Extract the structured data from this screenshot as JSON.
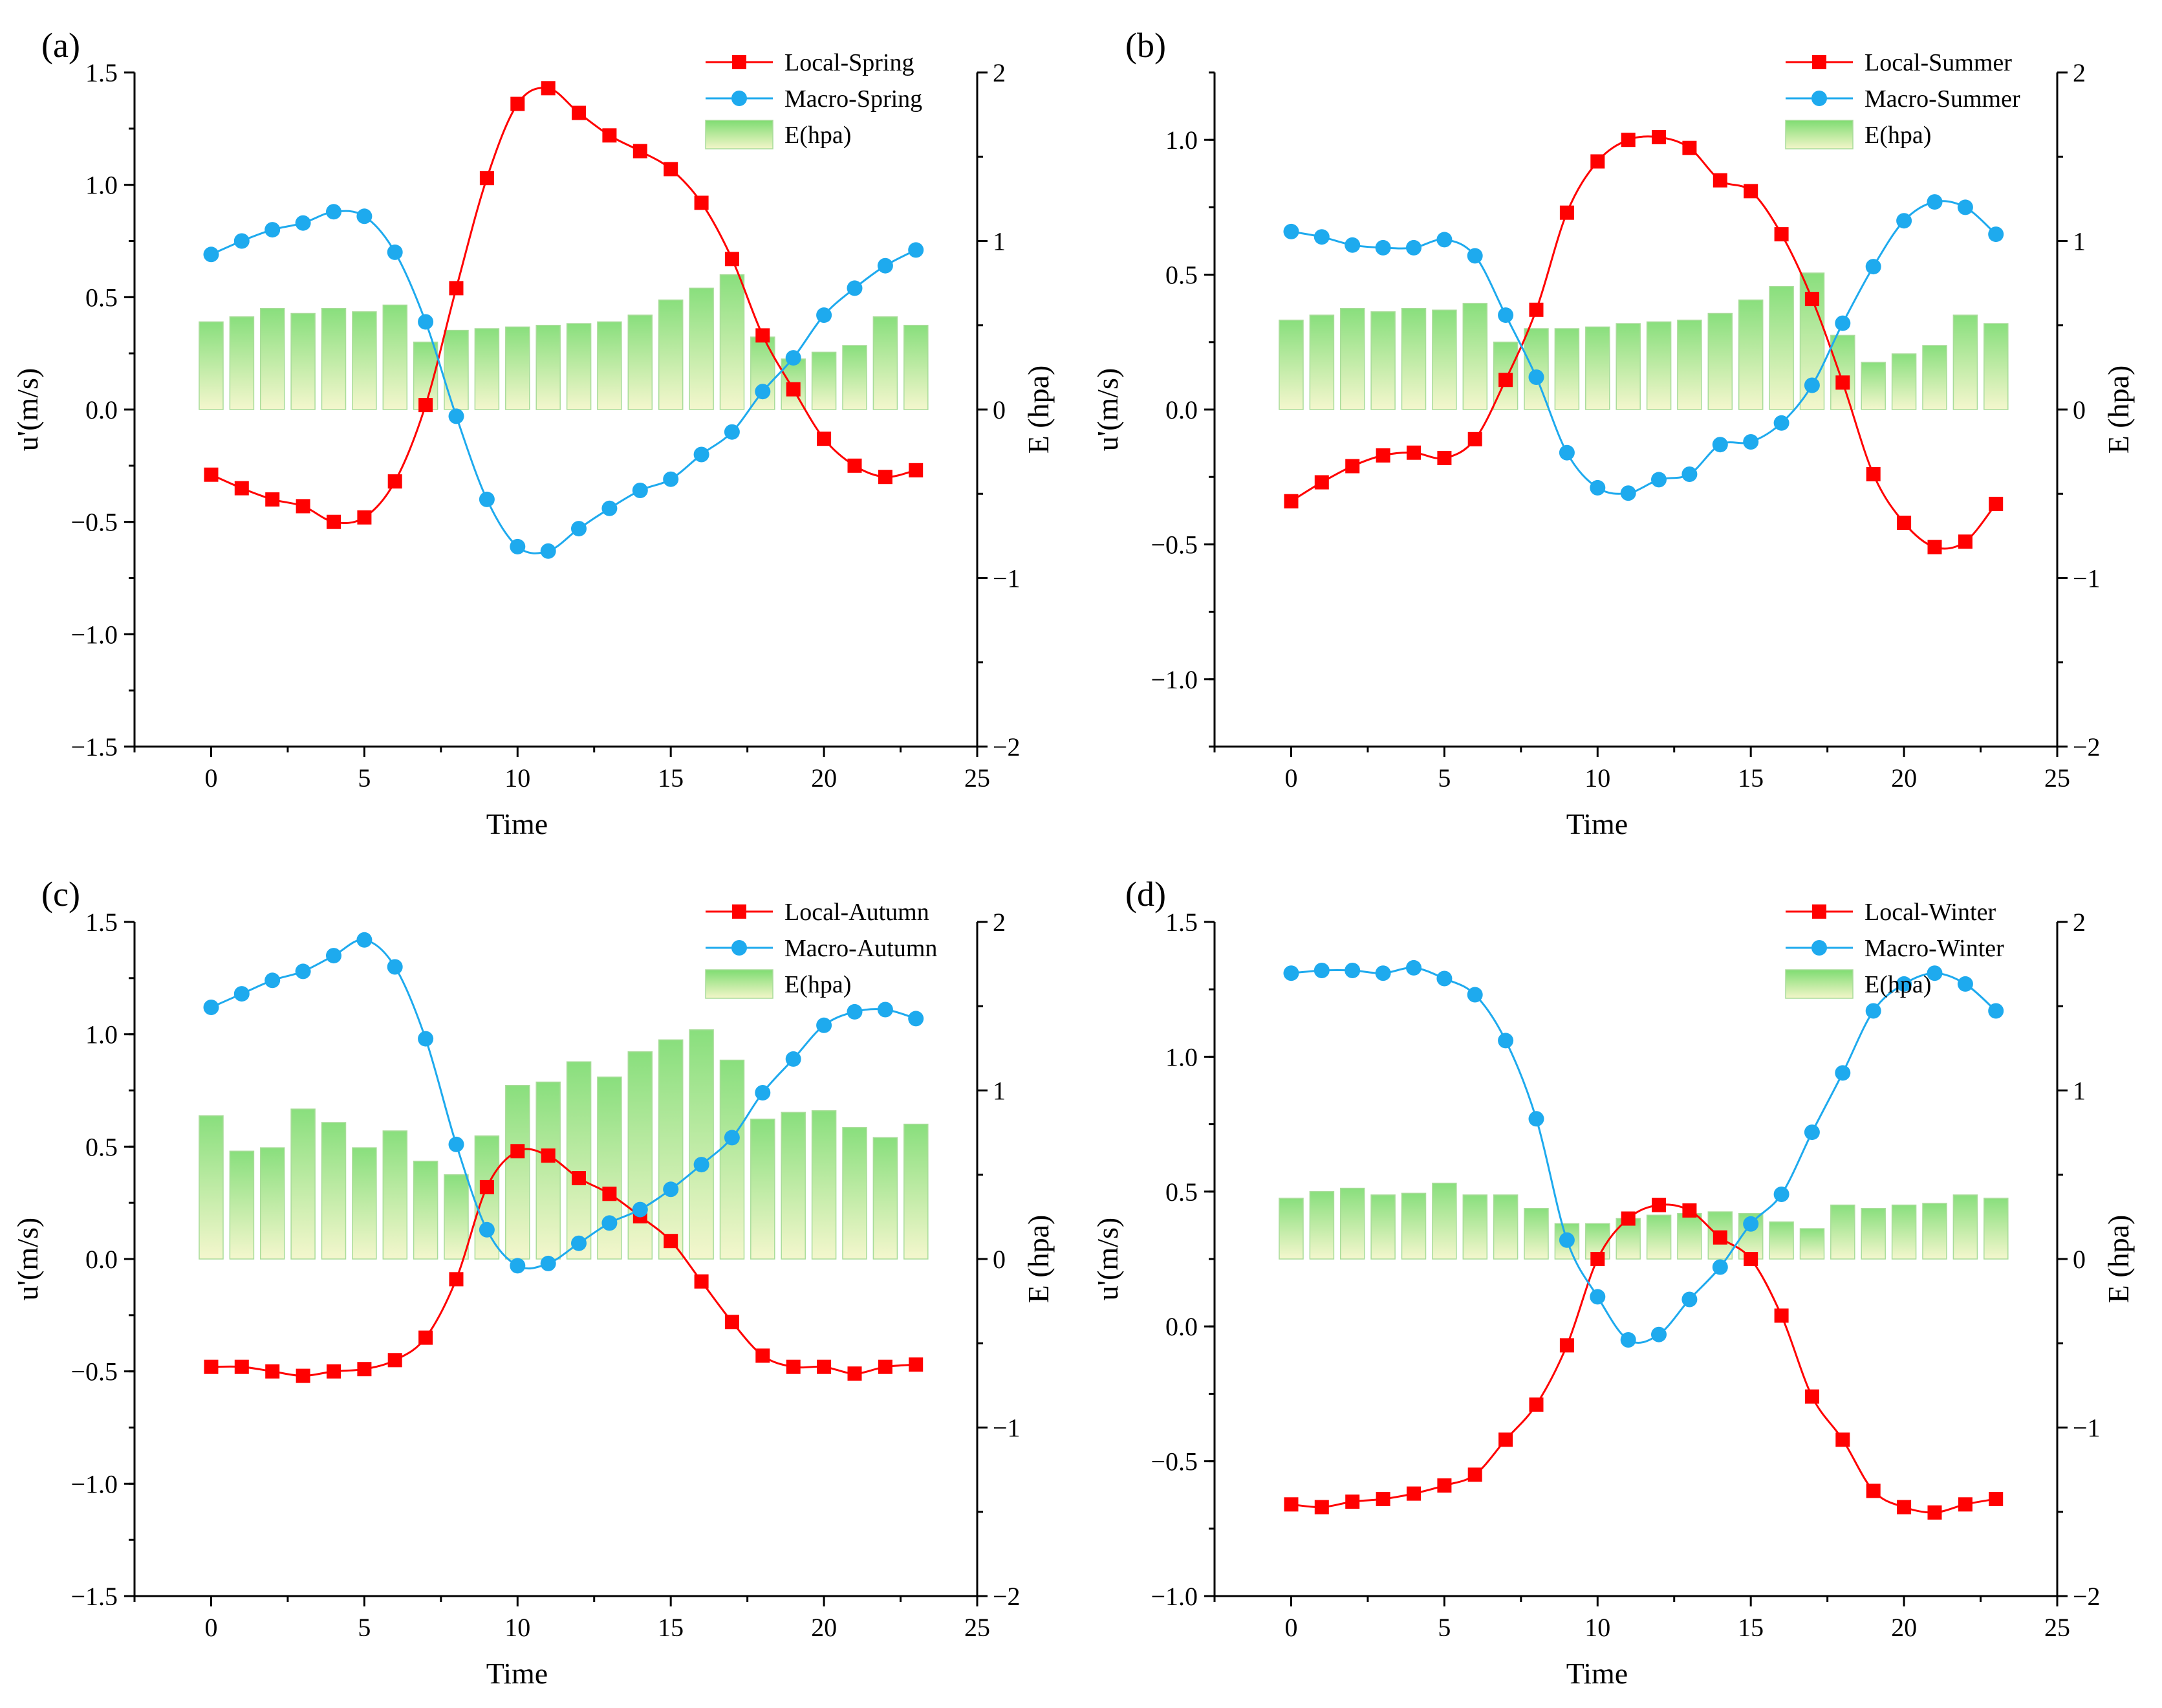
{
  "colors": {
    "local": "#ff0000",
    "macro": "#1eaaee",
    "bar_top": "#7fdc72",
    "bar_bottom": "#f3f6c9",
    "bar_edge": "#a9dc9a"
  },
  "chart_data": [
    {
      "type": "bar+line",
      "label": "(a)",
      "xlabel": "Time",
      "ylabel_left": "u'(m/s)",
      "ylabel_right": "E (hpa)",
      "xlim": [
        -2.5,
        25
      ],
      "xticks": [
        0,
        5,
        10,
        15,
        20,
        25
      ],
      "ylim_left": [
        -1.5,
        1.5
      ],
      "yticks_left": [
        "1.5",
        "1.0",
        "0.5",
        "0.0",
        "−0.5",
        "−1.0",
        "−1.5"
      ],
      "ytick_values_left": [
        1.5,
        1.0,
        0.5,
        0.0,
        -0.5,
        -1.0,
        -1.5
      ],
      "ylim_right": [
        -2,
        2
      ],
      "yticks_right": [
        "2",
        "1",
        "0",
        "−1",
        "−2"
      ],
      "ytick_values_right": [
        2,
        1,
        0,
        -1,
        -2
      ],
      "x": [
        0,
        1,
        2,
        3,
        4,
        5,
        6,
        7,
        8,
        9,
        10,
        11,
        12,
        13,
        14,
        15,
        16,
        17,
        18,
        19,
        20,
        21,
        22,
        23
      ],
      "series": [
        {
          "name": "Local-Spring",
          "kind": "line-square",
          "values": [
            -0.29,
            -0.35,
            -0.4,
            -0.43,
            -0.5,
            -0.48,
            -0.32,
            0.02,
            0.54,
            1.03,
            1.36,
            1.43,
            1.32,
            1.22,
            1.15,
            1.07,
            0.92,
            0.67,
            0.33,
            0.09,
            -0.13,
            -0.25,
            -0.3,
            -0.27
          ]
        },
        {
          "name": "Macro-Spring",
          "kind": "line-circle",
          "values": [
            0.69,
            0.75,
            0.8,
            0.83,
            0.88,
            0.86,
            0.7,
            0.39,
            -0.03,
            -0.4,
            -0.61,
            -0.63,
            -0.53,
            -0.44,
            -0.36,
            -0.31,
            -0.2,
            -0.1,
            0.08,
            0.23,
            0.42,
            0.54,
            0.64,
            0.71
          ]
        },
        {
          "name": "E(hpa)",
          "kind": "bar",
          "values": [
            0.52,
            0.55,
            0.6,
            0.57,
            0.6,
            0.58,
            0.62,
            0.4,
            0.47,
            0.48,
            0.49,
            0.5,
            0.51,
            0.52,
            0.56,
            0.65,
            0.72,
            0.8,
            0.43,
            0.3,
            0.34,
            0.38,
            0.55,
            0.5
          ]
        }
      ]
    },
    {
      "type": "bar+line",
      "label": "(b)",
      "xlabel": "Time",
      "ylabel_left": "u'(m/s)",
      "ylabel_right": "E (hpa)",
      "xlim": [
        -2.5,
        25
      ],
      "xticks": [
        0,
        5,
        10,
        15,
        20,
        25
      ],
      "ylim_left": [
        -1.25,
        1.25
      ],
      "yticks_left": [
        "1.0",
        "0.5",
        "0.0",
        "−0.5",
        "−1.0"
      ],
      "ytick_values_left": [
        1.0,
        0.5,
        0.0,
        -0.5,
        -1.0
      ],
      "ylim_right": [
        -2,
        2
      ],
      "yticks_right": [
        "2",
        "1",
        "0",
        "−1",
        "−2"
      ],
      "ytick_values_right": [
        2,
        1,
        0,
        -1,
        -2
      ],
      "x": [
        0,
        1,
        2,
        3,
        4,
        5,
        6,
        7,
        8,
        9,
        10,
        11,
        12,
        13,
        14,
        15,
        16,
        17,
        18,
        19,
        20,
        21,
        22,
        23
      ],
      "series": [
        {
          "name": "Local-Summer",
          "kind": "line-square",
          "values": [
            -0.34,
            -0.27,
            -0.21,
            -0.17,
            -0.16,
            -0.18,
            -0.11,
            0.11,
            0.37,
            0.73,
            0.92,
            1.0,
            1.01,
            0.97,
            0.85,
            0.81,
            0.65,
            0.41,
            0.1,
            -0.24,
            -0.42,
            -0.51,
            -0.49,
            -0.35
          ]
        },
        {
          "name": "Macro-Summer",
          "kind": "line-circle",
          "values": [
            0.66,
            0.64,
            0.61,
            0.6,
            0.6,
            0.63,
            0.57,
            0.35,
            0.12,
            -0.16,
            -0.29,
            -0.31,
            -0.26,
            -0.24,
            -0.13,
            -0.12,
            -0.05,
            0.09,
            0.32,
            0.53,
            0.7,
            0.77,
            0.75,
            0.65
          ]
        },
        {
          "name": "E(hpa)",
          "kind": "bar",
          "values": [
            0.53,
            0.56,
            0.6,
            0.58,
            0.6,
            0.59,
            0.63,
            0.4,
            0.48,
            0.48,
            0.49,
            0.51,
            0.52,
            0.53,
            0.57,
            0.65,
            0.73,
            0.81,
            0.44,
            0.28,
            0.33,
            0.38,
            0.56,
            0.51
          ]
        }
      ]
    },
    {
      "type": "bar+line",
      "label": "(c)",
      "xlabel": "Time",
      "ylabel_left": "u'(m/s)",
      "ylabel_right": "E (hpa)",
      "xlim": [
        -2.5,
        25
      ],
      "xticks": [
        0,
        5,
        10,
        15,
        20,
        25
      ],
      "ylim_left": [
        -1.5,
        1.5
      ],
      "yticks_left": [
        "1.5",
        "1.0",
        "0.5",
        "0.0",
        "−0.5",
        "−1.0",
        "−1.5"
      ],
      "ytick_values_left": [
        1.5,
        1.0,
        0.5,
        0.0,
        -0.5,
        -1.0,
        -1.5
      ],
      "ylim_right": [
        -2,
        2
      ],
      "yticks_right": [
        "2",
        "1",
        "0",
        "−1",
        "−2"
      ],
      "ytick_values_right": [
        2,
        1,
        0,
        -1,
        -2
      ],
      "x": [
        0,
        1,
        2,
        3,
        4,
        5,
        6,
        7,
        8,
        9,
        10,
        11,
        12,
        13,
        14,
        15,
        16,
        17,
        18,
        19,
        20,
        21,
        22,
        23
      ],
      "series": [
        {
          "name": "Local-Autumn",
          "kind": "line-square",
          "values": [
            -0.48,
            -0.48,
            -0.5,
            -0.52,
            -0.5,
            -0.49,
            -0.45,
            -0.35,
            -0.09,
            0.32,
            0.48,
            0.46,
            0.36,
            0.29,
            0.19,
            0.08,
            -0.1,
            -0.28,
            -0.43,
            -0.48,
            -0.48,
            -0.51,
            -0.48,
            -0.47
          ]
        },
        {
          "name": "Macro-Autumn",
          "kind": "line-circle",
          "values": [
            1.12,
            1.18,
            1.24,
            1.28,
            1.35,
            1.42,
            1.3,
            0.98,
            0.51,
            0.13,
            -0.03,
            -0.02,
            0.07,
            0.16,
            0.22,
            0.31,
            0.42,
            0.54,
            0.74,
            0.89,
            1.04,
            1.1,
            1.11,
            1.07
          ]
        },
        {
          "name": "E(hpa)",
          "kind": "bar",
          "values": [
            0.85,
            0.64,
            0.66,
            0.89,
            0.81,
            0.66,
            0.76,
            0.58,
            0.5,
            0.73,
            1.03,
            1.05,
            1.17,
            1.08,
            1.23,
            1.3,
            1.36,
            1.18,
            0.83,
            0.87,
            0.88,
            0.78,
            0.72,
            0.8
          ]
        }
      ]
    },
    {
      "type": "bar+line",
      "label": "(d)",
      "xlabel": "Time",
      "ylabel_left": "u'(m/s)",
      "ylabel_right": "E (hpa)",
      "xlim": [
        -2.5,
        25
      ],
      "xticks": [
        0,
        5,
        10,
        15,
        20,
        25
      ],
      "ylim_left": [
        -1.0,
        1.5
      ],
      "yticks_left": [
        "1.5",
        "1.0",
        "0.5",
        "0.0",
        "−0.5",
        "−1.0"
      ],
      "ytick_values_left": [
        1.5,
        1.0,
        0.5,
        0.0,
        -0.5,
        -1.0
      ],
      "ylim_right": [
        -2,
        2
      ],
      "yticks_right": [
        "2",
        "1",
        "0",
        "−1",
        "−2"
      ],
      "ytick_values_right": [
        2,
        1,
        0,
        -1,
        -2
      ],
      "x": [
        0,
        1,
        2,
        3,
        4,
        5,
        6,
        7,
        8,
        9,
        10,
        11,
        12,
        13,
        14,
        15,
        16,
        17,
        18,
        19,
        20,
        21,
        22,
        23
      ],
      "series": [
        {
          "name": "Local-Winter",
          "kind": "line-square",
          "values": [
            -0.66,
            -0.67,
            -0.65,
            -0.64,
            -0.62,
            -0.59,
            -0.55,
            -0.42,
            -0.29,
            -0.07,
            0.25,
            0.4,
            0.45,
            0.43,
            0.33,
            0.25,
            0.04,
            -0.26,
            -0.42,
            -0.61,
            -0.67,
            -0.69,
            -0.66,
            -0.64
          ]
        },
        {
          "name": "Macro-Winter",
          "kind": "line-circle",
          "values": [
            1.31,
            1.32,
            1.32,
            1.31,
            1.33,
            1.29,
            1.23,
            1.06,
            0.77,
            0.32,
            0.11,
            -0.05,
            -0.03,
            0.1,
            0.22,
            0.38,
            0.49,
            0.72,
            0.94,
            1.17,
            1.27,
            1.31,
            1.27,
            1.17
          ]
        },
        {
          "name": "E(hpa)",
          "kind": "bar",
          "values": [
            0.36,
            0.4,
            0.42,
            0.38,
            0.39,
            0.45,
            0.38,
            0.38,
            0.3,
            0.21,
            0.21,
            0.24,
            0.26,
            0.27,
            0.28,
            0.27,
            0.22,
            0.18,
            0.32,
            0.3,
            0.32,
            0.33,
            0.38,
            0.36
          ]
        }
      ]
    }
  ]
}
